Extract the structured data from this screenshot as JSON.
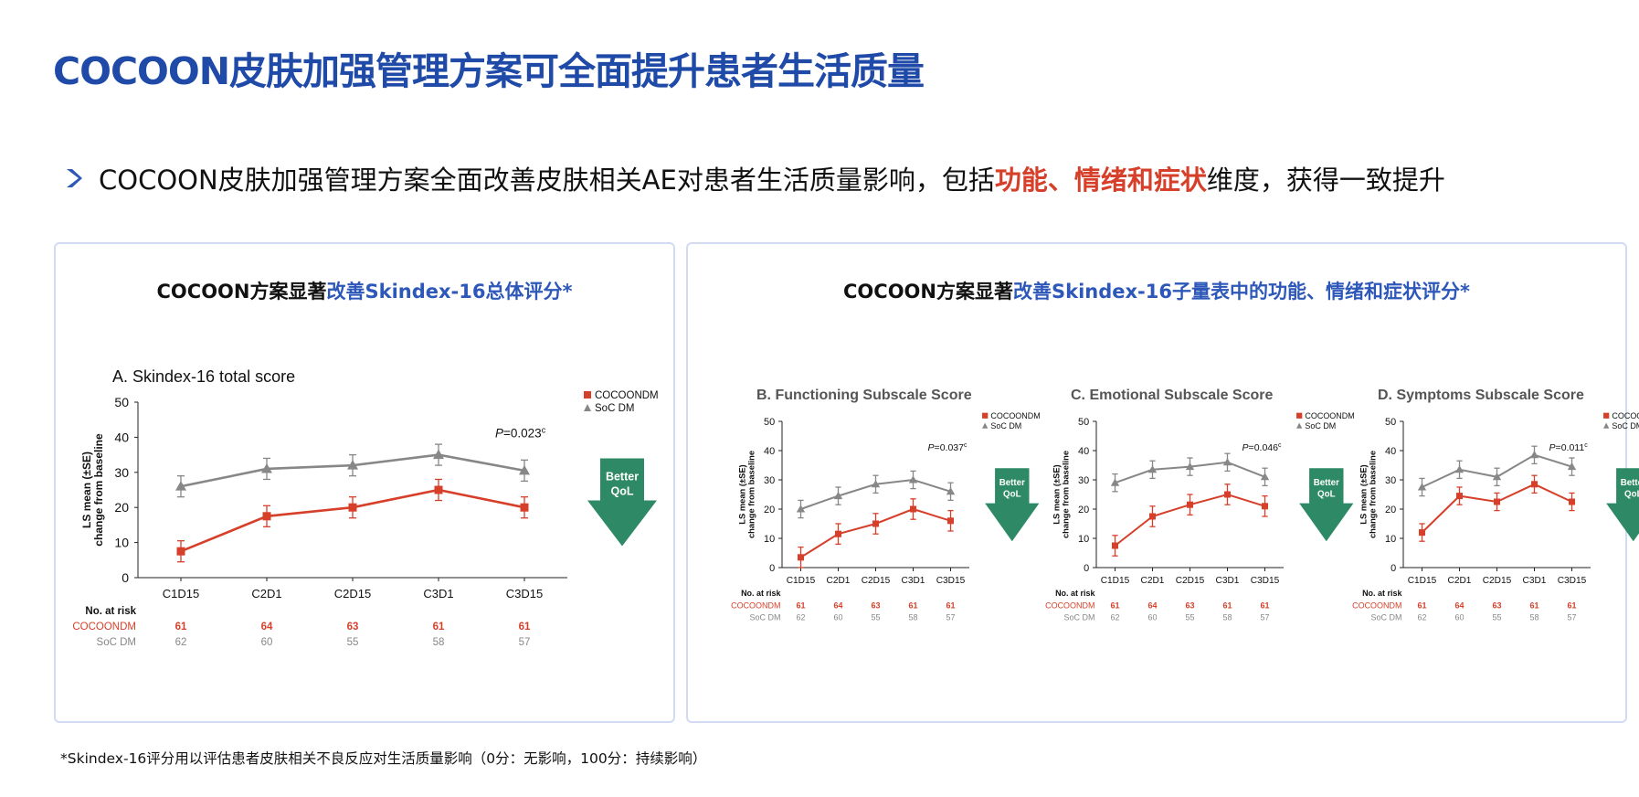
{
  "title": "COCOON皮肤加强管理方案可全面提升患者生活质量",
  "bullet": {
    "text_before": "COCOON皮肤加强管理方案全面改善皮肤相关AE对患者生活质量影响，包括",
    "highlight": "功能、情绪和症状",
    "text_after": "维度，获得一致提升"
  },
  "left_panel": {
    "title_black": "COCOON方案显著",
    "title_blue": "改善Skindex-16总体评分*"
  },
  "right_panel": {
    "title_black": "COCOON方案显著",
    "title_blue": "改善Skindex-16子量表中的功能、情绪和症状评分*"
  },
  "footnote": "*Skindex-16评分用以评估患者皮肤相关不良反应对生活质量影响（0分：无影响，100分：持续影响）",
  "colors": {
    "title_blue": "#1f4aa8",
    "cocoon": "#d6402a",
    "soc": "#878787",
    "arrow": "#2e8a66",
    "highlight": "#d6402a"
  },
  "chart_data": [
    {
      "type": "line",
      "title": "A. Skindex-16 total score",
      "ylabel": "LS mean (±SE)\nchange from baseline",
      "ylim": [
        0,
        50
      ],
      "yticks": [
        0,
        10,
        20,
        30,
        40,
        50
      ],
      "categories": [
        "C1D15",
        "C2D1",
        "C2D15",
        "C3D1",
        "C3D15"
      ],
      "series": [
        {
          "name": "COCOONDM",
          "marker": "square",
          "values": [
            7.5,
            17.5,
            20,
            25,
            20
          ],
          "err": [
            3,
            3,
            3,
            3,
            3
          ]
        },
        {
          "name": "SoC DM",
          "marker": "triangle",
          "values": [
            26,
            31,
            32,
            35,
            30.5
          ],
          "err": [
            3,
            3,
            3,
            3,
            3
          ]
        }
      ],
      "pvalue": "P=0.023",
      "pvalue_sup": "c",
      "arrow_label": [
        "Better",
        "QoL"
      ],
      "risk_title": "No. at risk",
      "risk": [
        {
          "name": "COCOONDM",
          "values": [
            "61",
            "64",
            "63",
            "61",
            "61"
          ]
        },
        {
          "name": "SoC DM",
          "values": [
            "62",
            "60",
            "55",
            "58",
            "57"
          ]
        }
      ]
    },
    {
      "type": "line",
      "title": "B. Functioning Subscale Score",
      "ylabel": "LS mean (±SE)\nchange from baseline",
      "ylim": [
        0,
        50
      ],
      "yticks": [
        0,
        10,
        20,
        30,
        40,
        50
      ],
      "categories": [
        "C1D15",
        "C2D1",
        "C2D15",
        "C3D1",
        "C3D15"
      ],
      "series": [
        {
          "name": "COCOONDM",
          "marker": "square",
          "values": [
            3.5,
            11.5,
            15,
            20,
            16
          ],
          "err": [
            3.5,
            3.5,
            3.5,
            3.5,
            3.5
          ]
        },
        {
          "name": "SoC DM",
          "marker": "triangle",
          "values": [
            20,
            24.5,
            28.5,
            30,
            26
          ],
          "err": [
            3,
            3,
            3,
            3,
            3
          ]
        }
      ],
      "pvalue": "P=0.037",
      "pvalue_sup": "c",
      "arrow_label": [
        "Better",
        "QoL"
      ],
      "risk_title": "No. at risk",
      "risk": [
        {
          "name": "COCOONDM",
          "values": [
            "61",
            "64",
            "63",
            "61",
            "61"
          ]
        },
        {
          "name": "SoC DM",
          "values": [
            "62",
            "60",
            "55",
            "58",
            "57"
          ]
        }
      ]
    },
    {
      "type": "line",
      "title": "C. Emotional Subscale Score",
      "ylabel": "LS mean (±SE)\nchange from baseline",
      "ylim": [
        0,
        50
      ],
      "yticks": [
        0,
        10,
        20,
        30,
        40,
        50
      ],
      "categories": [
        "C1D15",
        "C2D1",
        "C2D15",
        "C3D1",
        "C3D15"
      ],
      "series": [
        {
          "name": "COCOONDM",
          "marker": "square",
          "values": [
            7.5,
            17.5,
            21.5,
            25,
            21
          ],
          "err": [
            3.5,
            3.5,
            3.5,
            3.5,
            3.5
          ]
        },
        {
          "name": "SoC DM",
          "marker": "triangle",
          "values": [
            29,
            33.5,
            34.5,
            36,
            31
          ],
          "err": [
            3,
            3,
            3,
            3,
            3
          ]
        }
      ],
      "pvalue": "P=0.046",
      "pvalue_sup": "c",
      "arrow_label": [
        "Better",
        "QoL"
      ],
      "risk_title": "No. at risk",
      "risk": [
        {
          "name": "COCOONDM",
          "values": [
            "61",
            "64",
            "63",
            "61",
            "61"
          ]
        },
        {
          "name": "SoC DM",
          "values": [
            "62",
            "60",
            "55",
            "58",
            "57"
          ]
        }
      ]
    },
    {
      "type": "line",
      "title": "D. Symptoms Subscale Score",
      "ylabel": "LS mean (±SE)\nchange from baseline",
      "ylim": [
        0,
        50
      ],
      "yticks": [
        0,
        10,
        20,
        30,
        40,
        50
      ],
      "categories": [
        "C1D15",
        "C2D1",
        "C2D15",
        "C3D1",
        "C3D15"
      ],
      "series": [
        {
          "name": "COCOONDM",
          "marker": "square",
          "values": [
            12,
            24.5,
            22.5,
            28.5,
            22.5
          ],
          "err": [
            3,
            3,
            3,
            3,
            3
          ]
        },
        {
          "name": "SoC DM",
          "marker": "triangle",
          "values": [
            27.5,
            33.5,
            31,
            38.5,
            34.5
          ],
          "err": [
            3,
            3,
            3,
            3,
            3
          ]
        }
      ],
      "pvalue": "P=0.011",
      "pvalue_sup": "c",
      "arrow_label": [
        "Better",
        "QoL"
      ],
      "risk_title": "No. at risk",
      "risk": [
        {
          "name": "COCOONDM",
          "values": [
            "61",
            "64",
            "63",
            "61",
            "61"
          ]
        },
        {
          "name": "SoC DM",
          "values": [
            "62",
            "60",
            "55",
            "58",
            "57"
          ]
        }
      ]
    }
  ]
}
